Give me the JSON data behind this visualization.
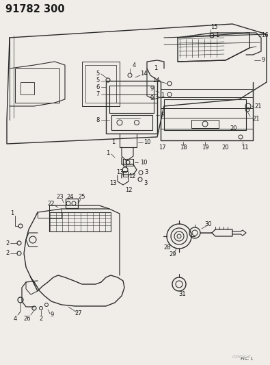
{
  "title": "91782 300",
  "bg_color": "#f0ede8",
  "line_color": "#2a2a2a",
  "text_color": "#1a1a1a",
  "fig_width": 3.95,
  "fig_height": 5.33,
  "dpi": 100,
  "title_fontsize": 10.5,
  "label_fontsize": 6.0
}
